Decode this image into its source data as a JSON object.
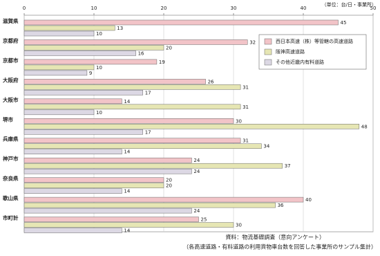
{
  "chart_data": {
    "type": "hbar",
    "unit_note": "（単位：台/日・事業所）",
    "categories": [
      "滋賀県",
      "京都府",
      "京都市",
      "大阪府",
      "大阪市",
      "堺市",
      "兵庫県",
      "神戸市",
      "奈良県",
      "歌山県",
      "市町計"
    ],
    "series": [
      {
        "name": "西日本高速（株）等管轄の高速道路",
        "color": "#f2c4c8",
        "values": [
          45,
          32,
          19,
          26,
          14,
          30,
          31,
          24,
          20,
          40,
          25
        ]
      },
      {
        "name": "阪神高速道路",
        "color": "#e6e6b4",
        "values": [
          13,
          20,
          10,
          31,
          31,
          48,
          34,
          37,
          20,
          36,
          30
        ]
      },
      {
        "name": "その他近畿内有料道路",
        "color": "#dcd8e4",
        "values": [
          10,
          16,
          9,
          17,
          10,
          17,
          14,
          24,
          14,
          24,
          14
        ]
      }
    ],
    "xlim": [
      0,
      50
    ],
    "xticks": [
      0,
      10,
      20,
      30,
      40,
      50
    ],
    "grid": true,
    "legend": "upper right",
    "source_lines": [
      "資料：物流基礎調査（意向アンケート）",
      "（各高速道路・有料道路の利用貨物車台数を回答した事業所のサンプル集計）"
    ]
  }
}
